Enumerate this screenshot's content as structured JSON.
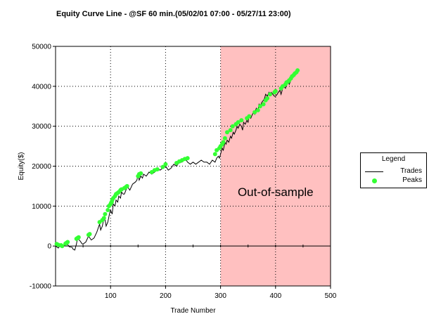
{
  "chart_data": {
    "type": "line",
    "title": "Equity Curve Line - @SF 60 min.(05/02/01 07:00 - 05/27/11 23:00)",
    "xlabel": "Trade Number",
    "ylabel": "Equity($)",
    "xlim": [
      0,
      500
    ],
    "ylim": [
      -10000,
      50000
    ],
    "x_ticks": [
      "100",
      "200",
      "300",
      "400",
      "500"
    ],
    "y_ticks": [
      "-10000",
      "0",
      "10000",
      "20000",
      "30000",
      "40000",
      "50000"
    ],
    "grid": true,
    "grid_style": "dotted",
    "shaded_region": {
      "x_start": 300,
      "x_end": 500,
      "color": "#ffc0c0",
      "label": "Out-of-sample"
    },
    "legend": {
      "title": "Legend",
      "placement": "right"
    },
    "series": [
      {
        "name": "Trades",
        "style": "line",
        "color": "#000000",
        "x": [
          0,
          5,
          10,
          15,
          20,
          25,
          30,
          32,
          35,
          38,
          40,
          43,
          45,
          48,
          50,
          55,
          60,
          65,
          70,
          75,
          80,
          82,
          85,
          88,
          90,
          92,
          95,
          98,
          100,
          103,
          105,
          108,
          110,
          113,
          115,
          118,
          120,
          123,
          125,
          128,
          130,
          135,
          140,
          145,
          148,
          150,
          152,
          155,
          158,
          160,
          165,
          170,
          175,
          180,
          185,
          190,
          195,
          200,
          205,
          210,
          215,
          220,
          225,
          230,
          235,
          240,
          245,
          250,
          255,
          260,
          265,
          270,
          275,
          280,
          285,
          290,
          293,
          296,
          298,
          300,
          303,
          305,
          308,
          310,
          312,
          315,
          318,
          320,
          323,
          325,
          328,
          330,
          332,
          335,
          338,
          340,
          342,
          345,
          348,
          350,
          352,
          355,
          358,
          360,
          362,
          365,
          368,
          370,
          372,
          375,
          378,
          380,
          382,
          385,
          388,
          390,
          392,
          395,
          398,
          400,
          403,
          405,
          408,
          410,
          413,
          415,
          418,
          420,
          423,
          425,
          428,
          430,
          433,
          435,
          438,
          440
        ],
        "y": [
          0,
          -500,
          500,
          0,
          800,
          -200,
          -300,
          -800,
          -1000,
          500,
          2000,
          1500,
          1200,
          600,
          500,
          1000,
          2500,
          1500,
          2000,
          3500,
          5500,
          4000,
          5000,
          7000,
          6500,
          5000,
          6000,
          8000,
          9000,
          8000,
          10500,
          10000,
          11500,
          11000,
          12500,
          12000,
          13500,
          13000,
          13000,
          14000,
          15000,
          14000,
          15500,
          16000,
          16500,
          18000,
          16500,
          17500,
          17000,
          18000,
          17500,
          18500,
          18000,
          18500,
          19500,
          19000,
          19500,
          20000,
          19000,
          19500,
          20500,
          20000,
          21000,
          21000,
          22000,
          21000,
          20500,
          21000,
          20500,
          21000,
          21500,
          21000,
          21000,
          20500,
          21500,
          21000,
          22000,
          22500,
          22000,
          23000,
          24500,
          24000,
          26000,
          25500,
          26500,
          26000,
          27500,
          27000,
          28500,
          28000,
          29000,
          30000,
          29500,
          30500,
          30000,
          29000,
          31000,
          30500,
          31500,
          31000,
          32500,
          32000,
          33000,
          33500,
          33000,
          34500,
          34000,
          35500,
          35000,
          36000,
          36500,
          37000,
          38000,
          37500,
          38500,
          38000,
          38500,
          38000,
          37500,
          37500,
          38000,
          38500,
          39000,
          38000,
          39500,
          40000,
          39500,
          40500,
          41000,
          40500,
          41500,
          42000,
          42500,
          43000,
          43500,
          44000
        ]
      },
      {
        "name": "Peaks",
        "style": "scatter",
        "color": "#33ff33",
        "x": [
          2,
          5,
          10,
          12,
          18,
          20,
          22,
          38,
          40,
          42,
          60,
          62,
          80,
          85,
          88,
          90,
          95,
          97,
          100,
          101,
          102,
          103,
          105,
          108,
          110,
          112,
          115,
          118,
          120,
          125,
          128,
          130,
          150,
          152,
          155,
          175,
          180,
          185,
          195,
          200,
          220,
          225,
          230,
          235,
          240,
          290,
          293,
          298,
          300,
          303,
          305,
          308,
          312,
          318,
          322,
          328,
          332,
          338,
          348,
          352,
          362,
          368,
          372,
          378,
          382,
          385,
          390,
          398,
          400,
          410,
          413,
          418,
          420,
          423,
          425,
          428,
          430,
          433,
          435,
          438,
          440
        ],
        "y": [
          500,
          300,
          200,
          0,
          600,
          800,
          1000,
          1800,
          2000,
          2200,
          2800,
          3000,
          6000,
          6500,
          7000,
          8000,
          9000,
          10000,
          10500,
          10800,
          11000,
          11500,
          12000,
          12500,
          13000,
          13200,
          13500,
          14000,
          14200,
          14500,
          14800,
          15000,
          17500,
          18000,
          18200,
          18500,
          19000,
          19200,
          19800,
          20500,
          20800,
          21200,
          21500,
          21800,
          22000,
          23000,
          24000,
          24500,
          25000,
          25500,
          26000,
          27000,
          28500,
          29000,
          30000,
          30500,
          31000,
          31500,
          32000,
          32500,
          33500,
          34000,
          35000,
          35500,
          36500,
          37000,
          38000,
          38500,
          38800,
          39500,
          40000,
          40500,
          41000,
          41200,
          41500,
          42000,
          42500,
          42800,
          43200,
          43500,
          44000
        ]
      }
    ]
  }
}
